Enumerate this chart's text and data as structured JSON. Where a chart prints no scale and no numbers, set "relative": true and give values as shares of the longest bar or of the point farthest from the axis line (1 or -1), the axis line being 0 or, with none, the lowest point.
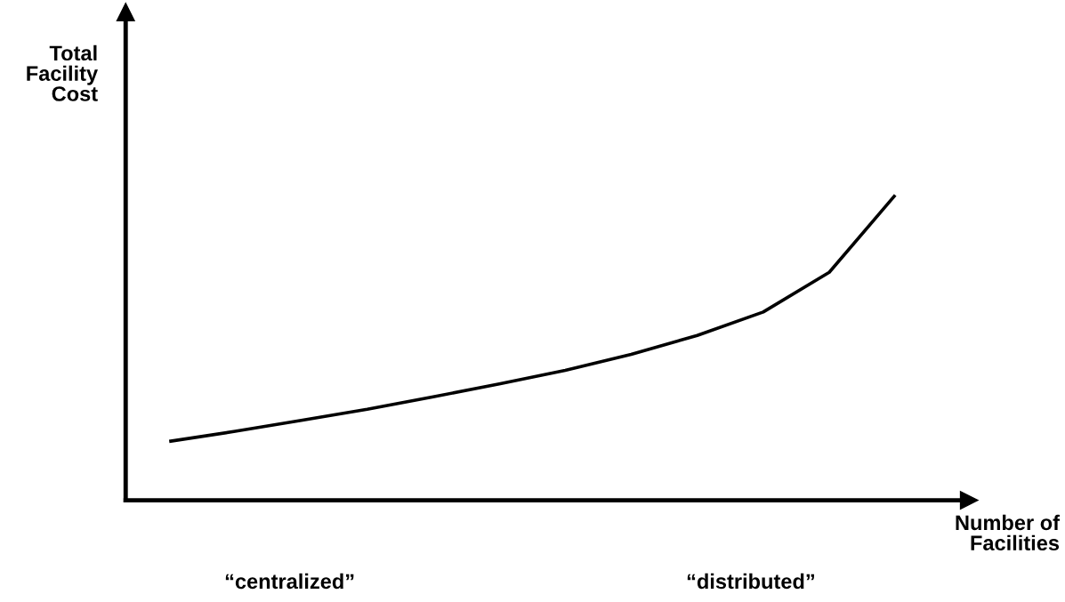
{
  "chart_data": {
    "type": "line",
    "relative": true,
    "xlabel": "Number of\nFacilities",
    "ylabel": "Total\nFacility\nCost",
    "categories": [
      null,
      null,
      null,
      null,
      null,
      null,
      null,
      null,
      null,
      null,
      null,
      null
    ],
    "series": [
      {
        "color": "#000000",
        "values": [
          0.193,
          0.226,
          0.262,
          0.298,
          0.339,
          0.381,
          0.426,
          0.478,
          0.54,
          0.617,
          0.747,
          1.0
        ]
      }
    ],
    "annotations": [
      "“centralized”",
      "“distributed”"
    ],
    "grid": false,
    "legend": false,
    "marker": "none",
    "line_style": "solid"
  }
}
